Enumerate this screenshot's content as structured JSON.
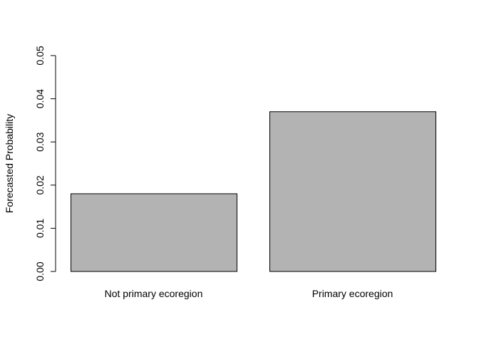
{
  "chart_data": {
    "type": "bar",
    "title": "",
    "xlabel": "",
    "ylabel": "Forecasted Probability",
    "categories": [
      "Not primary ecoregion",
      "Primary ecoregion"
    ],
    "values": [
      0.018,
      0.037
    ],
    "ylim": [
      0,
      0.05
    ],
    "yticks": [
      "0.00",
      "0.01",
      "0.02",
      "0.03",
      "0.04",
      "0.05"
    ],
    "grid": false,
    "legend": "none",
    "bar_color": "#b3b3b3",
    "bar_border_color": "#000000"
  }
}
